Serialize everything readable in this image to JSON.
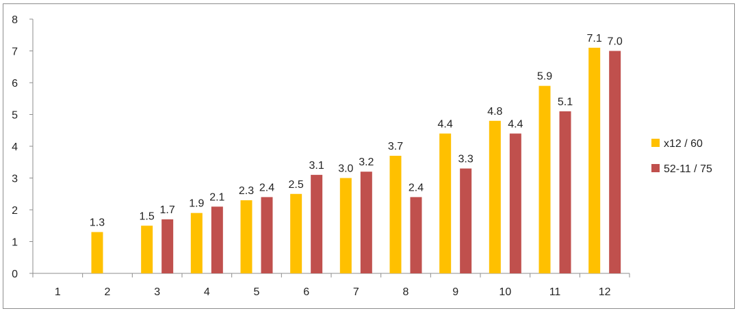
{
  "chart_data": {
    "type": "bar",
    "categories": [
      "1",
      "2",
      "3",
      "4",
      "5",
      "6",
      "7",
      "8",
      "9",
      "10",
      "11",
      "12"
    ],
    "series": [
      {
        "name": "x12 / 60",
        "color": "#FFC000",
        "values": [
          null,
          1.3,
          1.5,
          1.9,
          2.3,
          2.5,
          3.0,
          3.7,
          4.4,
          4.8,
          5.9,
          7.1
        ],
        "labels": [
          "",
          "1.3",
          "1.5",
          "1.9",
          "2.3",
          "2.5",
          "3.0",
          "3.7",
          "4.4",
          "4.8",
          "5.9",
          "7.1"
        ]
      },
      {
        "name": "52-11 / 75",
        "color": "#C0504D",
        "values": [
          null,
          null,
          1.7,
          2.1,
          2.4,
          3.1,
          3.2,
          2.4,
          3.3,
          4.4,
          5.1,
          7.0
        ],
        "labels": [
          "",
          "",
          "1.7",
          "2.1",
          "2.4",
          "3.1",
          "3.2",
          "2.4",
          "3.3",
          "4.4",
          "5.1",
          "7.0"
        ]
      }
    ],
    "ylim": [
      0,
      8
    ],
    "yticks": [
      "0",
      "1",
      "2",
      "3",
      "4",
      "5",
      "6",
      "7",
      "8"
    ],
    "grid": false,
    "legend_position": "right",
    "title": "",
    "xlabel": "",
    "ylabel": ""
  }
}
